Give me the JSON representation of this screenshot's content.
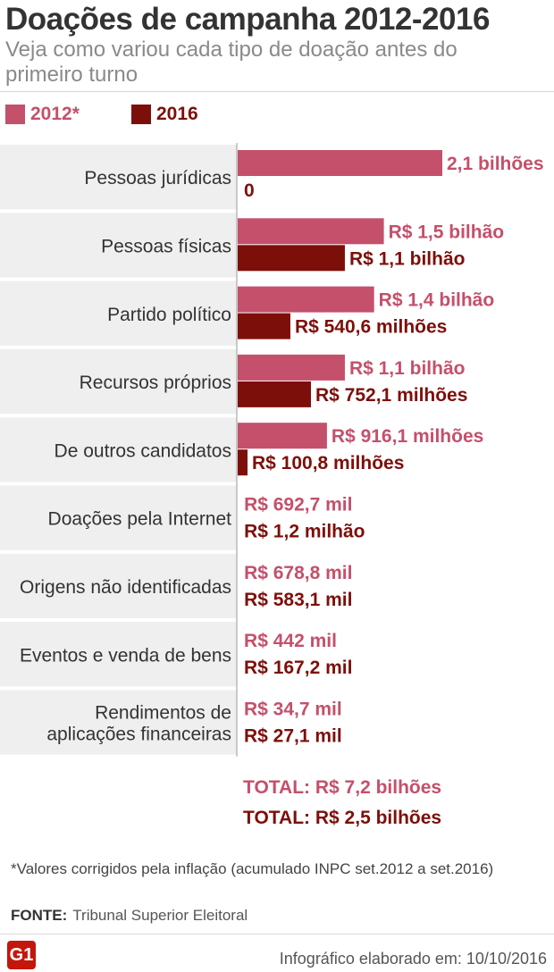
{
  "header": {
    "title": "Doações de campanha 2012-2016",
    "subtitle": "Veja como variou cada tipo de doação antes do primeiro turno"
  },
  "colors": {
    "s2012": "#c4506b",
    "s2016": "#7d0f0a",
    "band": "#efefef"
  },
  "chart_data": {
    "type": "bar",
    "orientation": "horizontal",
    "unit": "R$",
    "categories": [
      "Pessoas jurídicas",
      "Pessoas físicas",
      "Partido político",
      "Recursos próprios",
      "De outros candidatos",
      "Doações pela Internet",
      "Origens não identificadas",
      "Eventos e venda de bens",
      "Rendimentos de aplicações financeiras"
    ],
    "series": [
      {
        "name": "2012*",
        "color": "#c4506b",
        "values": [
          2100000000,
          1500000000,
          1400000000,
          1100000000,
          916100000,
          692700,
          678800,
          442000,
          34700
        ],
        "labels": [
          "2,1 bilhões",
          "R$ 1,5 bilhão",
          "R$ 1,4 bilhão",
          "R$ 1,1 bilhão",
          "R$ 916,1 milhões",
          "R$ 692,7 mil",
          "R$ 678,8 mil",
          "R$ 442 mil",
          "R$ 34,7 mil"
        ]
      },
      {
        "name": "2016",
        "color": "#7d0f0a",
        "values": [
          0,
          1100000000,
          540600000,
          752100000,
          100800000,
          1200000,
          583100,
          167200,
          27100
        ],
        "labels": [
          "0",
          "R$ 1,1 bilhão",
          "R$ 540,6 milhões",
          "R$ 752,1 milhões",
          "R$ 100,8 milhões",
          "R$ 1,2 milhão",
          "R$ 583,1 mil",
          "R$ 167,2 mil",
          "R$ 27,1 mil"
        ]
      }
    ],
    "totals": [
      "TOTAL: R$ 7,2 bilhões",
      "TOTAL: R$ 2,5 bilhões"
    ]
  },
  "footer": {
    "note": "*Valores corrigidos pela inflação (acumulado INPC set.2012 a set.2016)",
    "source_key": "FONTE:",
    "source_value": "Tribunal Superior Eleitoral",
    "logo": "G1",
    "made": "Infográfico elaborado em: 10/10/2016"
  }
}
